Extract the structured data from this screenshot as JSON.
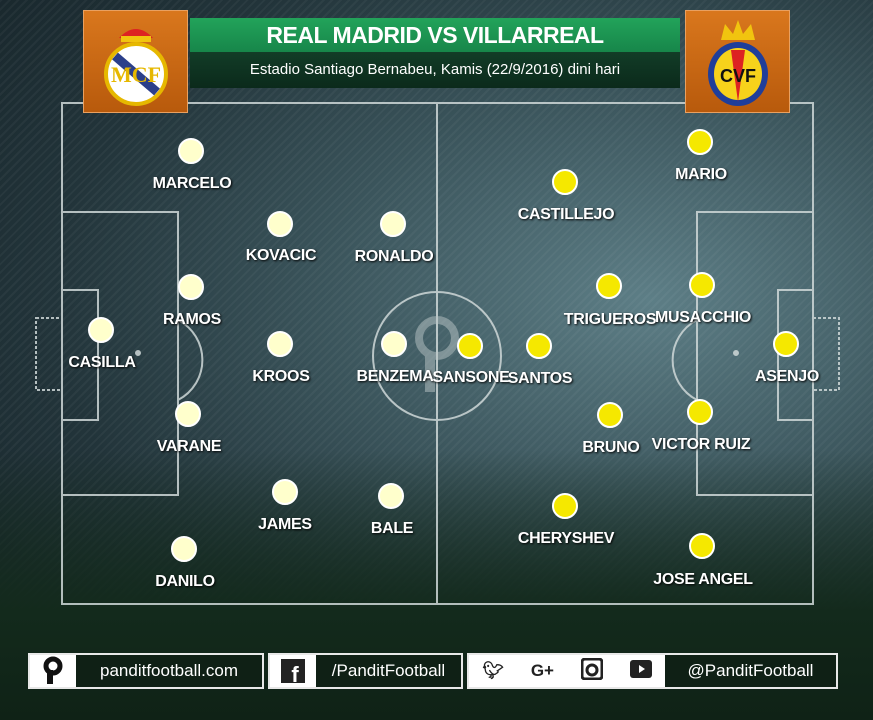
{
  "header": {
    "title": "REAL MADRID VS VILLARREAL",
    "subtitle": "Estadio Santiago Bernabeu, Kamis (22/9/2016) dini hari",
    "home_logo": "real-madrid-crest",
    "away_logo": "villarreal-crest"
  },
  "colors": {
    "home_dot": "#ffffcc",
    "away_dot": "#f5e800",
    "banner": "#1f9b55",
    "logo_bg": "#c96a12"
  },
  "home_players": [
    "MARCELO",
    "KOVACIC",
    "RONALDO",
    "RAMOS",
    "CASILLA",
    "KROOS",
    "BENZEMA",
    "VARANE",
    "JAMES",
    "BALE",
    "DANILO"
  ],
  "away_players": [
    "MARIO",
    "CASTILLEJO",
    "TRIGUEROS",
    "MUSACCHIO",
    "SANSONE",
    "SANTOS",
    "ASENJO",
    "BRUNO",
    "VICTOR RUIZ",
    "CHERYSHEV",
    "JOSE ANGEL"
  ],
  "footer": {
    "website": "panditfootball.com",
    "facebook": "/PanditFootball",
    "social_handle": "@PanditFootball",
    "icons": [
      "pandit-logo-icon",
      "facebook-icon",
      "twitter-icon",
      "google-plus-icon",
      "instagram-icon",
      "youtube-icon"
    ]
  }
}
